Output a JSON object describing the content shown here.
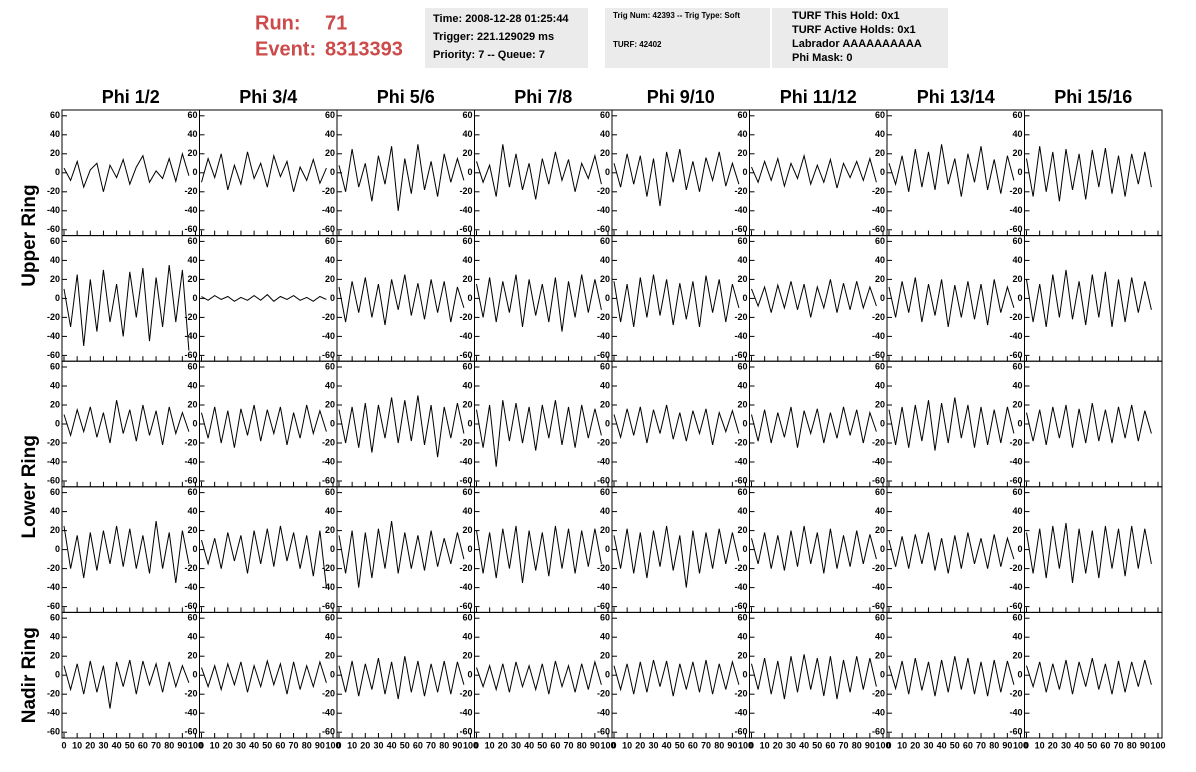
{
  "header": {
    "run_label": "Run:",
    "run": "71",
    "event_label": "Event:",
    "event": "8313393",
    "time": "Time: 2008-12-28 01:25:44",
    "trigger": "Trigger: 221.129029 ms",
    "priority": "Priority: 7 -- Queue: 7",
    "trig_num": "Trig Num: 42393 -- Trig Type: Soft",
    "turf": "TURF: 42402",
    "turf_hold": "TURF This Hold: 0x1",
    "turf_active": "TURF Active Holds: 0x1",
    "labrador": "Labrador AAAAAAAAAA",
    "phi_mask": "Phi Mask: 0"
  },
  "chart_data": {
    "type": "line",
    "columns": [
      "Phi 1/2",
      "Phi 3/4",
      "Phi 5/6",
      "Phi 7/8",
      "Phi 9/10",
      "Phi 11/12",
      "Phi 13/14",
      "Phi 15/16"
    ],
    "row_labels": [
      "Upper Ring",
      "Lower Ring",
      "Nadir Ring"
    ],
    "color": "#000000",
    "xlim": [
      0,
      100
    ],
    "ylim": [
      -64,
      64
    ],
    "xticks": [
      0,
      10,
      20,
      30,
      40,
      50,
      60,
      70,
      80,
      90,
      100
    ],
    "yticks": [
      -60,
      -40,
      -20,
      0,
      20,
      40,
      60
    ],
    "x": [
      0,
      5,
      10,
      15,
      20,
      25,
      30,
      35,
      40,
      45,
      50,
      55,
      60,
      65,
      70,
      75,
      80,
      85,
      90,
      95
    ],
    "panels": [
      [
        [
          5,
          -8,
          12,
          -15,
          3,
          10,
          -20,
          8,
          -5,
          14,
          -12,
          6,
          18,
          -10,
          2,
          -6,
          15,
          -9,
          20,
          -3
        ],
        [
          -10,
          15,
          -5,
          20,
          -18,
          8,
          -12,
          22,
          -6,
          10,
          -15,
          18,
          -4,
          12,
          -20,
          6,
          -8,
          14,
          -11,
          5
        ],
        [
          8,
          -20,
          25,
          -15,
          10,
          -30,
          18,
          -12,
          28,
          -40,
          15,
          -22,
          30,
          -18,
          12,
          -25,
          20,
          -10,
          15,
          -8
        ],
        [
          12,
          -10,
          8,
          -25,
          30,
          -15,
          20,
          -18,
          10,
          -28,
          15,
          -12,
          22,
          -8,
          14,
          -20,
          10,
          -6,
          18,
          -12
        ],
        [
          10,
          -15,
          20,
          -12,
          18,
          -25,
          15,
          -35,
          22,
          -10,
          25,
          -18,
          12,
          -20,
          16,
          -8,
          22,
          -14,
          10,
          -12
        ],
        [
          6,
          -10,
          12,
          -8,
          15,
          -14,
          10,
          -6,
          18,
          -12,
          8,
          -10,
          14,
          -16,
          10,
          -5,
          12,
          -8,
          15,
          -10
        ],
        [
          10,
          -12,
          18,
          -20,
          25,
          -15,
          22,
          -18,
          30,
          -12,
          15,
          -25,
          20,
          -10,
          28,
          -18,
          14,
          -22,
          18,
          -8
        ],
        [
          15,
          -25,
          28,
          -20,
          22,
          -30,
          25,
          -18,
          20,
          -28,
          24,
          -15,
          26,
          -22,
          18,
          -25,
          20,
          -12,
          22,
          -15
        ]
      ],
      [
        [
          10,
          -30,
          25,
          -50,
          20,
          -35,
          30,
          -25,
          15,
          -40,
          28,
          -20,
          32,
          -45,
          22,
          -30,
          35,
          -25,
          30,
          -55
        ],
        [
          2,
          -2,
          3,
          -1,
          2,
          -3,
          1,
          -2,
          3,
          -2,
          4,
          -3,
          2,
          -1,
          3,
          -2,
          1,
          -3,
          2,
          -1
        ],
        [
          12,
          -25,
          18,
          -15,
          22,
          -20,
          15,
          -28,
          20,
          -12,
          25,
          -18,
          16,
          -22,
          20,
          -15,
          18,
          -25,
          12,
          -10
        ],
        [
          15,
          -20,
          22,
          -25,
          18,
          -15,
          25,
          -30,
          20,
          -18,
          15,
          -25,
          22,
          -35,
          18,
          -20,
          25,
          -15,
          20,
          -12
        ],
        [
          18,
          -25,
          15,
          -30,
          22,
          -20,
          25,
          -18,
          20,
          -28,
          16,
          -22,
          18,
          -30,
          24,
          -15,
          20,
          -25,
          15,
          -10
        ],
        [
          10,
          -8,
          12,
          -15,
          14,
          -10,
          18,
          -12,
          15,
          -20,
          12,
          -10,
          20,
          -15,
          16,
          -12,
          18,
          -10,
          12,
          -8
        ],
        [
          12,
          -20,
          18,
          -15,
          22,
          -25,
          15,
          -18,
          20,
          -30,
          14,
          -20,
          18,
          -22,
          15,
          -28,
          20,
          -15,
          12,
          -10
        ],
        [
          20,
          -25,
          15,
          -30,
          25,
          -20,
          30,
          -22,
          18,
          -28,
          25,
          -20,
          28,
          -30,
          20,
          -25,
          22,
          -15,
          18,
          -12
        ]
      ],
      [
        [
          10,
          -12,
          15,
          -8,
          18,
          -14,
          12,
          -20,
          25,
          -10,
          15,
          -18,
          20,
          -12,
          14,
          -22,
          18,
          -10,
          12,
          -8
        ],
        [
          12,
          -15,
          18,
          -20,
          14,
          -25,
          16,
          -12,
          20,
          -18,
          15,
          -10,
          18,
          -22,
          12,
          -15,
          20,
          -10,
          14,
          -8
        ],
        [
          15,
          -20,
          18,
          -25,
          22,
          -30,
          20,
          -15,
          28,
          -20,
          25,
          -18,
          30,
          -22,
          20,
          -35,
          18,
          -15,
          22,
          -10
        ],
        [
          15,
          -25,
          20,
          -45,
          25,
          -18,
          22,
          -20,
          18,
          -28,
          20,
          -15,
          25,
          -22,
          18,
          -25,
          20,
          -15,
          16,
          -12
        ],
        [
          10,
          -14,
          16,
          -12,
          18,
          -20,
          15,
          -10,
          20,
          -16,
          12,
          -18,
          14,
          -10,
          16,
          -22,
          12,
          -8,
          14,
          -10
        ],
        [
          10,
          -18,
          15,
          -20,
          12,
          -14,
          18,
          -25,
          14,
          -10,
          16,
          -20,
          12,
          -15,
          18,
          -12,
          15,
          -20,
          12,
          -8
        ],
        [
          15,
          -22,
          18,
          -25,
          20,
          -18,
          25,
          -28,
          22,
          -20,
          28,
          -15,
          20,
          -25,
          18,
          -22,
          15,
          -20,
          18,
          -10
        ],
        [
          12,
          -18,
          15,
          -22,
          18,
          -15,
          20,
          -25,
          16,
          -20,
          22,
          -18,
          15,
          -20,
          18,
          -15,
          20,
          -18,
          14,
          -10
        ]
      ],
      [
        [
          25,
          -20,
          15,
          -30,
          18,
          -22,
          20,
          -15,
          25,
          -18,
          22,
          -20,
          15,
          -25,
          30,
          -20,
          18,
          -35,
          20,
          -15
        ],
        [
          10,
          -15,
          12,
          -20,
          18,
          -12,
          15,
          -25,
          20,
          -15,
          22,
          -18,
          25,
          -12,
          18,
          -20,
          15,
          -28,
          20,
          -40
        ],
        [
          15,
          -25,
          20,
          -40,
          18,
          -30,
          22,
          -20,
          30,
          -25,
          18,
          -20,
          15,
          -22,
          20,
          -18,
          12,
          -15,
          18,
          -10
        ],
        [
          20,
          -25,
          18,
          -30,
          22,
          -20,
          25,
          -35,
          20,
          -22,
          18,
          -28,
          25,
          -20,
          22,
          -25,
          20,
          -18,
          22,
          -15
        ],
        [
          15,
          -20,
          22,
          -25,
          18,
          -30,
          20,
          -18,
          25,
          -22,
          15,
          -40,
          20,
          -25,
          18,
          -20,
          22,
          -15,
          18,
          -12
        ],
        [
          12,
          -15,
          18,
          -20,
          15,
          -22,
          20,
          -18,
          25,
          -15,
          18,
          -25,
          22,
          -20,
          15,
          -18,
          20,
          -15,
          16,
          -10
        ],
        [
          10,
          -18,
          14,
          -20,
          16,
          -15,
          18,
          -22,
          12,
          -25,
          15,
          -20,
          18,
          -15,
          12,
          -20,
          16,
          -18,
          12,
          -10
        ],
        [
          18,
          -25,
          22,
          -30,
          25,
          -20,
          28,
          -35,
          22,
          -25,
          20,
          -30,
          25,
          -20,
          22,
          -28,
          25,
          -20,
          22,
          -15
        ]
      ],
      [
        [
          10,
          -15,
          12,
          -20,
          15,
          -18,
          10,
          -35,
          14,
          -12,
          16,
          -20,
          15,
          -10,
          12,
          -18,
          14,
          -12,
          10,
          -8
        ],
        [
          8,
          -12,
          10,
          -15,
          12,
          -10,
          14,
          -18,
          10,
          -12,
          15,
          -10,
          12,
          -20,
          14,
          -15,
          10,
          -12,
          14,
          -8
        ],
        [
          10,
          -18,
          15,
          -22,
          12,
          -15,
          18,
          -20,
          14,
          -25,
          20,
          -18,
          15,
          -22,
          12,
          -18,
          15,
          -20,
          14,
          -10
        ],
        [
          8,
          -12,
          10,
          -15,
          12,
          -18,
          14,
          -12,
          10,
          -15,
          12,
          -20,
          15,
          -12,
          10,
          -18,
          12,
          -15,
          14,
          -10
        ],
        [
          10,
          -15,
          12,
          -20,
          14,
          -18,
          16,
          -12,
          15,
          -22,
          12,
          -15,
          14,
          -18,
          16,
          -20,
          12,
          -15,
          14,
          -10
        ],
        [
          12,
          -15,
          18,
          -20,
          15,
          -25,
          20,
          -18,
          22,
          -15,
          18,
          -22,
          20,
          -25,
          16,
          -18,
          20,
          -15,
          18,
          -12
        ],
        [
          10,
          -14,
          15,
          -20,
          18,
          -16,
          14,
          -22,
          16,
          -18,
          20,
          -15,
          18,
          -20,
          14,
          -22,
          16,
          -18,
          15,
          -10
        ],
        [
          10,
          -12,
          14,
          -18,
          12,
          -15,
          16,
          -20,
          14,
          -12,
          18,
          -15,
          12,
          -20,
          15,
          -18,
          14,
          -12,
          16,
          -10
        ]
      ]
    ]
  }
}
